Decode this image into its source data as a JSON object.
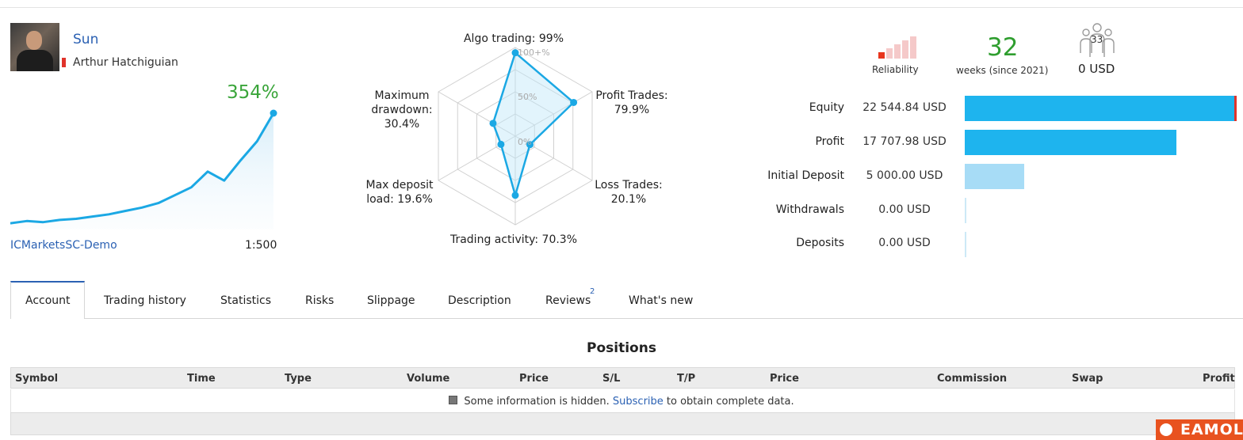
{
  "profile": {
    "name": "Sun",
    "full_name": "Arthur Hatchiguian",
    "gain": "354%",
    "broker": "ICMarketsSC-Demo",
    "leverage": "1:500",
    "growth_curve": [
      2,
      4,
      3,
      5,
      6,
      8,
      10,
      13,
      16,
      20,
      27,
      34,
      48,
      40,
      58,
      75,
      100
    ]
  },
  "radar": {
    "ticks": {
      "top": "100+%",
      "mid": "50%",
      "zero": "0%"
    },
    "axes": [
      {
        "label": "Algo trading: 99%",
        "value": 99
      },
      {
        "label": "Profit Trades:\n79.9%",
        "value": 79.9
      },
      {
        "label": "Loss Trades:\n20.1%",
        "value": 20.1
      },
      {
        "label": "Trading activity: 70.3%",
        "value": 70.3
      },
      {
        "label": "Max deposit\nload: 19.6%",
        "value": 19.6
      },
      {
        "label": "Maximum\ndrawdown:\n30.4%",
        "value": 30.4
      }
    ]
  },
  "stats": {
    "reliability_label": "Reliability",
    "reliability_level": 1,
    "reliability_max": 5,
    "weeks": "32",
    "weeks_label": "weeks (since 2021)",
    "subscribers": "33",
    "subscription_price": "0 USD"
  },
  "finance": [
    {
      "label": "Equity",
      "value": "22 544.84 USD",
      "ratio": 1.0,
      "color": "#1eb4ee"
    },
    {
      "label": "Profit",
      "value": "17 707.98 USD",
      "ratio": 0.785,
      "color": "#1eb4ee"
    },
    {
      "label": "Initial Deposit",
      "value": "5 000.00 USD",
      "ratio": 0.222,
      "color": "#a7dcf6"
    },
    {
      "label": "Withdrawals",
      "value": "0.00 USD",
      "ratio": 0,
      "color": "#a7dcf6"
    },
    {
      "label": "Deposits",
      "value": "0.00 USD",
      "ratio": 0,
      "color": "#a7dcf6"
    }
  ],
  "tabs": [
    {
      "label": "Account",
      "active": true
    },
    {
      "label": "Trading history"
    },
    {
      "label": "Statistics"
    },
    {
      "label": "Risks"
    },
    {
      "label": "Slippage"
    },
    {
      "label": "Description"
    },
    {
      "label": "Reviews",
      "badge": "2"
    },
    {
      "label": "What's new"
    }
  ],
  "positions": {
    "title": "Positions",
    "columns": [
      "Symbol",
      "Time",
      "Type",
      "Volume",
      "Price",
      "S/L",
      "T/P",
      "Price",
      "Commission",
      "Swap",
      "Profit"
    ],
    "hidden_before": "Some information is hidden.",
    "hidden_link": "Subscribe",
    "hidden_after": "to obtain complete data."
  },
  "watermark": "EAMOL",
  "colors": {
    "accent": "#1ba8e4",
    "gain": "#3aa53a",
    "link": "#2b61b3",
    "reliability": "#e8351d"
  }
}
